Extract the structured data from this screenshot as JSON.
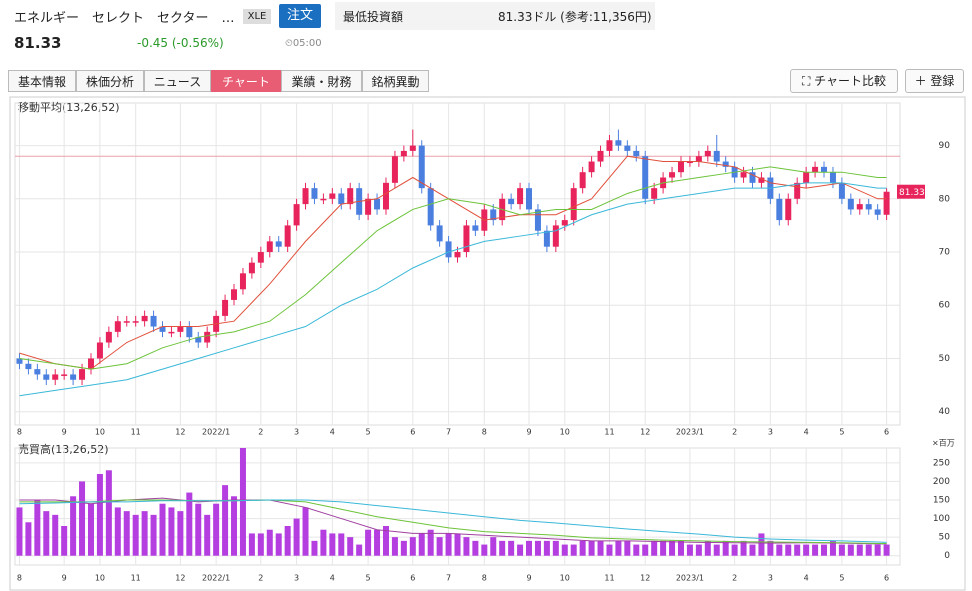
{
  "header": {
    "name": "エネルギー　セレクト　セクター　…",
    "ticker": "XLE",
    "order": "注文",
    "price": "81.33",
    "change": "-0.45 (-0.56%)",
    "time": "05:00",
    "min_invest_label": "最低投資額",
    "min_invest_value": "81.33ドル (参考:11,356円)"
  },
  "tabs": [
    "基本情報",
    "株価分析",
    "ニュース",
    "チャート",
    "業績・財務",
    "銘柄異動"
  ],
  "buttons": [
    "チャート比較",
    "登録"
  ],
  "chart_data": [
    {
      "type": "candlestick",
      "title": "移動平均(13,26,52)",
      "up_color": "#e8245c",
      "down_color": "#4a7fe0",
      "reference_line": 88,
      "reference_color": "#e8a0a8",
      "xlim": [
        -0.5,
        98.5
      ],
      "ylim": [
        37.5,
        98
      ],
      "yticks": [
        40,
        50,
        60,
        70,
        80,
        90
      ],
      "grid": true,
      "xticks": [
        {
          "value": 0,
          "label": "8"
        },
        {
          "value": 5,
          "label": "9"
        },
        {
          "value": 9,
          "label": "10"
        },
        {
          "value": 13,
          "label": "11"
        },
        {
          "value": 18,
          "label": "12"
        },
        {
          "value": 22,
          "label": "2022/1"
        },
        {
          "value": 27,
          "label": "2"
        },
        {
          "value": 31,
          "label": "3"
        },
        {
          "value": 35,
          "label": "4"
        },
        {
          "value": 39,
          "label": "5"
        },
        {
          "value": 44,
          "label": "6"
        },
        {
          "value": 48,
          "label": "7"
        },
        {
          "value": 52,
          "label": "8"
        },
        {
          "value": 57,
          "label": "9"
        },
        {
          "value": 61,
          "label": "10"
        },
        {
          "value": 66,
          "label": "11"
        },
        {
          "value": 70,
          "label": "12"
        },
        {
          "value": 75,
          "label": "2023/1"
        },
        {
          "value": 80,
          "label": "2"
        },
        {
          "value": 84,
          "label": "3"
        },
        {
          "value": 88,
          "label": "4"
        },
        {
          "value": 92,
          "label": "5"
        },
        {
          "value": 97,
          "label": "6"
        }
      ],
      "open": [
        50,
        49,
        48,
        47,
        46,
        47,
        47,
        46,
        48,
        50,
        53,
        55,
        57,
        57,
        57,
        58,
        56,
        55,
        55,
        56,
        54,
        53,
        55,
        58,
        61,
        63,
        66,
        68,
        70,
        72,
        71,
        75,
        79,
        82,
        80,
        80,
        81,
        79,
        82,
        77,
        80,
        78,
        83,
        88,
        89,
        90,
        82,
        75,
        72,
        69,
        70,
        75,
        74,
        78,
        76,
        80,
        79,
        82,
        78,
        74,
        71,
        75,
        76,
        82,
        85,
        87,
        89,
        91,
        90,
        89,
        88,
        80,
        82,
        84,
        85,
        87,
        87,
        88,
        89,
        87,
        86,
        84,
        85,
        83,
        84,
        80,
        76,
        80,
        83,
        85,
        86,
        85,
        83,
        80,
        78,
        79,
        78,
        77
      ],
      "high": [
        51,
        50,
        49,
        48,
        48,
        48,
        48,
        49,
        51,
        54,
        56,
        58,
        58,
        58,
        59,
        59,
        57,
        56,
        57,
        57,
        55,
        56,
        59,
        62,
        64,
        67,
        69,
        71,
        73,
        73,
        76,
        80,
        83,
        83,
        81,
        82,
        82,
        83,
        83,
        81,
        81,
        84,
        89,
        90,
        93,
        91,
        83,
        76,
        73,
        71,
        76,
        76,
        79,
        79,
        81,
        81,
        83,
        83,
        79,
        75,
        76,
        77,
        83,
        86,
        88,
        90,
        92,
        93,
        91,
        90,
        89,
        83,
        85,
        86,
        88,
        88,
        89,
        90,
        92,
        88,
        87,
        86,
        86,
        85,
        85,
        81,
        81,
        84,
        86,
        87,
        87,
        86,
        84,
        81,
        80,
        80,
        79,
        82
      ],
      "low": [
        48,
        47,
        46,
        45,
        45,
        46,
        45,
        45,
        47,
        49,
        52,
        54,
        56,
        56,
        56,
        55,
        54,
        54,
        54,
        53,
        52,
        52,
        54,
        57,
        60,
        62,
        65,
        67,
        69,
        70,
        70,
        74,
        78,
        79,
        79,
        79,
        78,
        78,
        76,
        76,
        77,
        77,
        82,
        87,
        88,
        81,
        74,
        71,
        68,
        68,
        69,
        73,
        73,
        75,
        75,
        78,
        78,
        77,
        73,
        70,
        70,
        74,
        75,
        81,
        84,
        86,
        88,
        89,
        88,
        87,
        79,
        79,
        81,
        83,
        84,
        86,
        86,
        87,
        86,
        85,
        83,
        83,
        82,
        82,
        79,
        75,
        75,
        79,
        82,
        84,
        84,
        82,
        79,
        77,
        77,
        77,
        76,
        76
      ],
      "close": [
        49,
        48,
        47,
        46,
        47,
        47,
        46,
        48,
        50,
        53,
        55,
        57,
        57,
        57,
        58,
        56,
        55,
        55,
        56,
        54,
        53,
        55,
        58,
        61,
        63,
        66,
        68,
        70,
        72,
        71,
        75,
        79,
        82,
        80,
        80,
        81,
        79,
        82,
        77,
        80,
        78,
        83,
        88,
        89,
        90,
        82,
        75,
        72,
        69,
        70,
        75,
        74,
        78,
        76,
        80,
        79,
        82,
        78,
        74,
        71,
        75,
        76,
        82,
        85,
        87,
        89,
        91,
        90,
        89,
        88,
        80,
        82,
        84,
        85,
        87,
        87,
        88,
        89,
        87,
        86,
        84,
        85,
        83,
        84,
        80,
        76,
        80,
        83,
        85,
        86,
        85,
        83,
        80,
        78,
        79,
        78,
        77,
        81.33
      ],
      "series": [
        {
          "name": "13",
          "color": "#e0503a",
          "x": [
            0,
            4,
            8,
            12,
            16,
            20,
            24,
            28,
            32,
            36,
            40,
            44,
            48,
            52,
            56,
            60,
            64,
            68,
            72,
            76,
            80,
            84,
            88,
            92,
            96,
            97
          ],
          "values": [
            51,
            49,
            48,
            53,
            56,
            56,
            57,
            64,
            72,
            79,
            80,
            84,
            80,
            76,
            77,
            77,
            80,
            88,
            87,
            87,
            86,
            83,
            82,
            83,
            80,
            80
          ]
        },
        {
          "name": "26",
          "color": "#6cc33a",
          "x": [
            0,
            4,
            8,
            12,
            16,
            20,
            24,
            28,
            32,
            36,
            40,
            44,
            48,
            52,
            56,
            60,
            64,
            68,
            72,
            76,
            80,
            84,
            88,
            92,
            96,
            97
          ],
          "values": [
            50,
            49,
            48,
            49,
            52,
            54,
            55,
            57,
            62,
            68,
            74,
            78,
            80,
            79,
            77,
            78,
            78,
            81,
            83,
            84,
            85,
            86,
            85,
            85,
            84,
            84
          ]
        },
        {
          "name": "52",
          "color": "#3ab8d8",
          "x": [
            0,
            4,
            8,
            12,
            16,
            20,
            24,
            28,
            32,
            36,
            40,
            44,
            48,
            52,
            56,
            60,
            64,
            68,
            72,
            76,
            80,
            84,
            88,
            92,
            96,
            97
          ],
          "values": [
            43,
            44,
            45,
            46,
            48,
            50,
            52,
            54,
            56,
            60,
            63,
            67,
            70,
            72,
            73,
            74,
            77,
            79,
            80,
            81,
            82,
            82,
            83,
            83,
            82,
            82
          ]
        }
      ]
    },
    {
      "type": "bar",
      "title": "売買高(13,26,52)",
      "unit": "×百万",
      "color": "#b43ee0",
      "xlim": [
        -0.5,
        98.5
      ],
      "ylim": [
        -25,
        290
      ],
      "yticks": [
        0,
        50,
        100,
        150,
        200,
        250
      ],
      "grid": true,
      "xticks": [
        {
          "value": 0,
          "label": "8"
        },
        {
          "value": 5,
          "label": "9"
        },
        {
          "value": 9,
          "label": "10"
        },
        {
          "value": 13,
          "label": "11"
        },
        {
          "value": 18,
          "label": "12"
        },
        {
          "value": 22,
          "label": "2022/1"
        },
        {
          "value": 27,
          "label": "2"
        },
        {
          "value": 31,
          "label": "3"
        },
        {
          "value": 35,
          "label": "4"
        },
        {
          "value": 39,
          "label": "5"
        },
        {
          "value": 44,
          "label": "6"
        },
        {
          "value": 48,
          "label": "7"
        },
        {
          "value": 52,
          "label": "8"
        },
        {
          "value": 57,
          "label": "9"
        },
        {
          "value": 61,
          "label": "10"
        },
        {
          "value": 66,
          "label": "11"
        },
        {
          "value": 70,
          "label": "12"
        },
        {
          "value": 75,
          "label": "2023/1"
        },
        {
          "value": 80,
          "label": "2"
        },
        {
          "value": 84,
          "label": "3"
        },
        {
          "value": 88,
          "label": "4"
        },
        {
          "value": 92,
          "label": "5"
        },
        {
          "value": 97,
          "label": "6"
        }
      ],
      "values": [
        130,
        90,
        150,
        120,
        110,
        80,
        160,
        200,
        140,
        220,
        230,
        130,
        120,
        110,
        120,
        110,
        140,
        130,
        120,
        170,
        140,
        110,
        140,
        190,
        160,
        290,
        60,
        60,
        70,
        60,
        80,
        100,
        130,
        40,
        70,
        60,
        60,
        50,
        30,
        70,
        70,
        80,
        50,
        40,
        50,
        60,
        70,
        50,
        60,
        60,
        50,
        40,
        30,
        50,
        40,
        40,
        30,
        40,
        40,
        40,
        40,
        30,
        30,
        40,
        40,
        40,
        30,
        40,
        40,
        30,
        30,
        40,
        40,
        40,
        40,
        30,
        30,
        40,
        30,
        40,
        30,
        40,
        30,
        60,
        40,
        30,
        30,
        30,
        30,
        30,
        30,
        40,
        30,
        30,
        30,
        30,
        30,
        30
      ],
      "series": [
        {
          "name": "13",
          "color": "#a040a0",
          "x": [
            0,
            4,
            8,
            12,
            16,
            20,
            24,
            28,
            32,
            36,
            40,
            44,
            48,
            52,
            56,
            60,
            64,
            68,
            72,
            76,
            80,
            84,
            88,
            92,
            96,
            97
          ],
          "values": [
            150,
            150,
            140,
            150,
            155,
            145,
            150,
            150,
            130,
            100,
            70,
            60,
            60,
            55,
            50,
            45,
            40,
            40,
            38,
            36,
            35,
            34,
            35,
            34,
            32,
            32
          ]
        },
        {
          "name": "26",
          "color": "#6cc33a",
          "x": [
            0,
            4,
            8,
            12,
            16,
            20,
            24,
            28,
            32,
            36,
            40,
            44,
            48,
            52,
            56,
            60,
            64,
            68,
            72,
            76,
            80,
            84,
            88,
            92,
            96,
            97
          ],
          "values": [
            145,
            145,
            145,
            150,
            150,
            148,
            148,
            150,
            145,
            125,
            105,
            90,
            75,
            65,
            60,
            55,
            48,
            45,
            42,
            40,
            38,
            37,
            36,
            35,
            33,
            33
          ]
        },
        {
          "name": "52",
          "color": "#3ab8d8",
          "x": [
            0,
            4,
            8,
            12,
            16,
            20,
            24,
            28,
            32,
            36,
            40,
            44,
            48,
            52,
            56,
            60,
            64,
            68,
            72,
            76,
            80,
            84,
            88,
            92,
            96,
            97
          ],
          "values": [
            140,
            142,
            145,
            145,
            148,
            148,
            148,
            150,
            150,
            145,
            135,
            125,
            115,
            105,
            95,
            88,
            80,
            72,
            65,
            58,
            50,
            45,
            42,
            40,
            37,
            36
          ]
        }
      ]
    }
  ]
}
